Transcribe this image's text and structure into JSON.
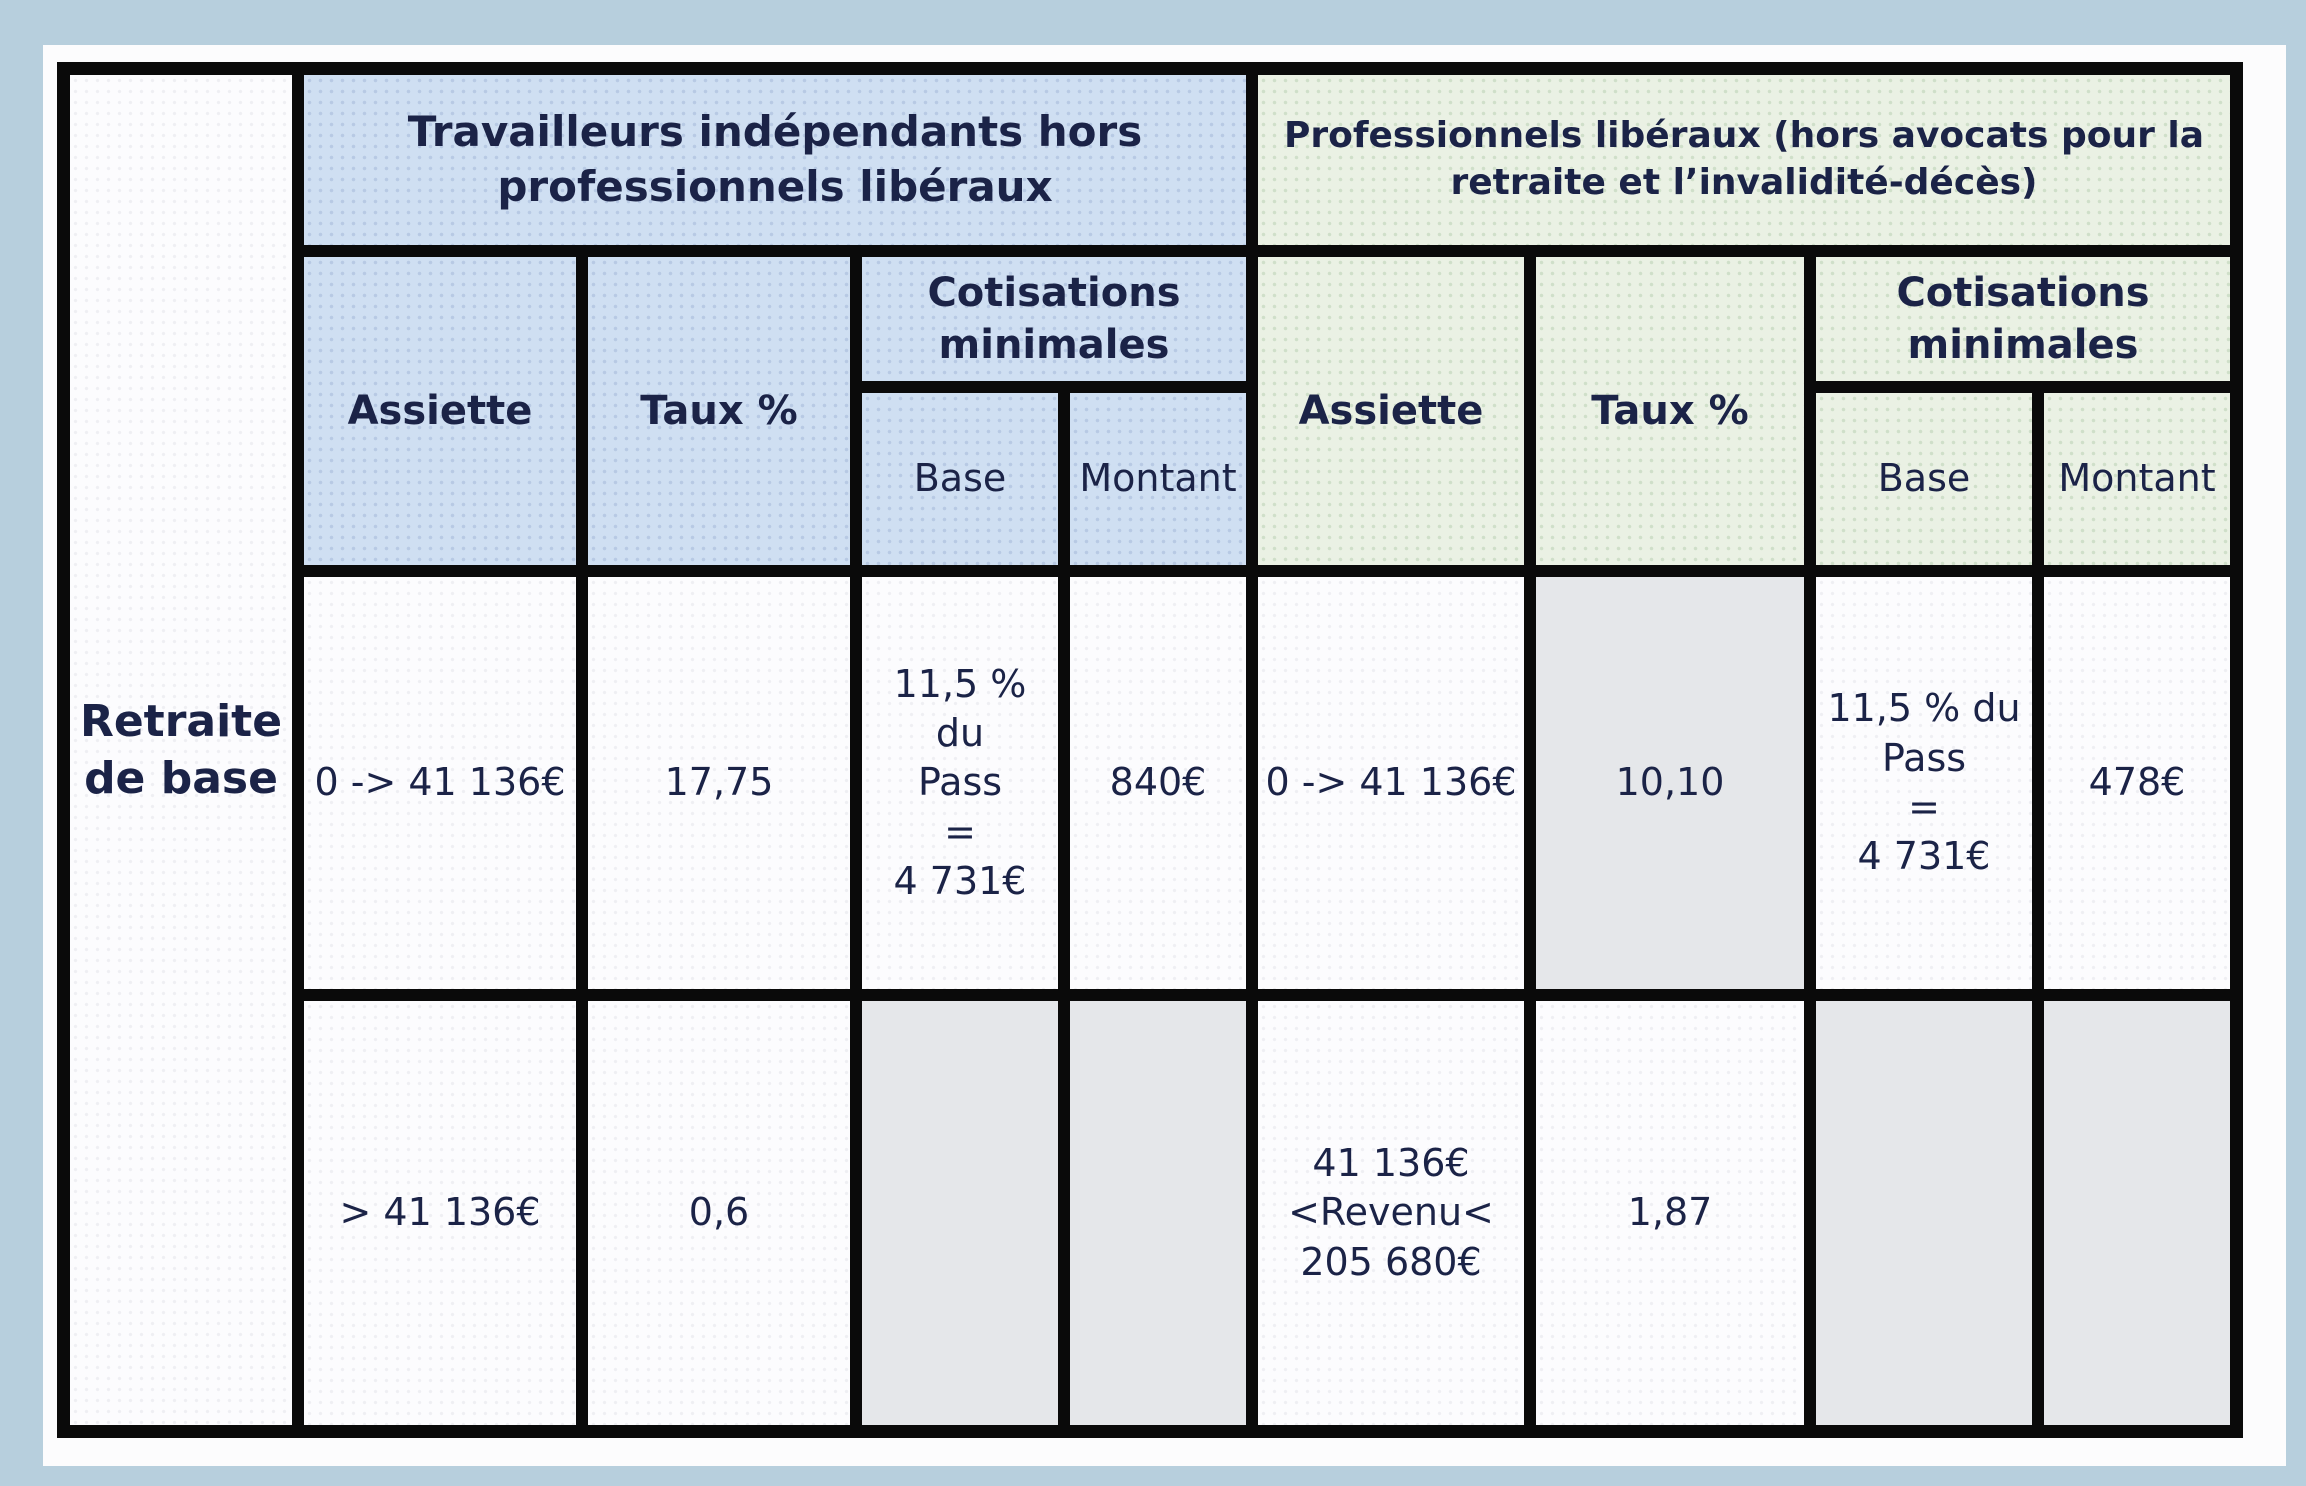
{
  "colors": {
    "frame_blue": "#b7cfdd",
    "panel_white": "#fcfcfd",
    "header_blue": "#cfdff2",
    "header_green": "#eaf1e4",
    "cell_white": "#fcfcfe",
    "cell_gray": "#e5e7ea",
    "text_navy": "#1b2347",
    "border_black": "#0a0a0a"
  },
  "table": {
    "row_label": "Retraite de base",
    "group_left": {
      "title": "Travailleurs indépendants hors\nprofessionnels libéraux"
    },
    "group_right": {
      "title": "Professionnels libéraux (hors avocats pour la\nretraite et l’invalidité-décès)"
    },
    "headers": {
      "assiette": "Assiette",
      "taux": "Taux %",
      "cotisations": "Cotisations minimales",
      "base": "Base",
      "montant": "Montant"
    },
    "rows": [
      {
        "left": {
          "assiette": "0 -> 41 136€",
          "taux": "17,75",
          "base": "11,5 % du\nPass\n=\n4 731€",
          "montant": "840€"
        },
        "right": {
          "assiette": "0 -> 41 136€",
          "taux": "10,10",
          "base": "11,5 % du\nPass\n=\n4 731€",
          "montant": "478€"
        }
      },
      {
        "left": {
          "assiette": "> 41 136€",
          "taux": "0,6",
          "base": "",
          "montant": ""
        },
        "right": {
          "assiette": "41 136€\n<Revenu<\n205 680€",
          "taux": "1,87",
          "base": "",
          "montant": ""
        }
      }
    ]
  }
}
